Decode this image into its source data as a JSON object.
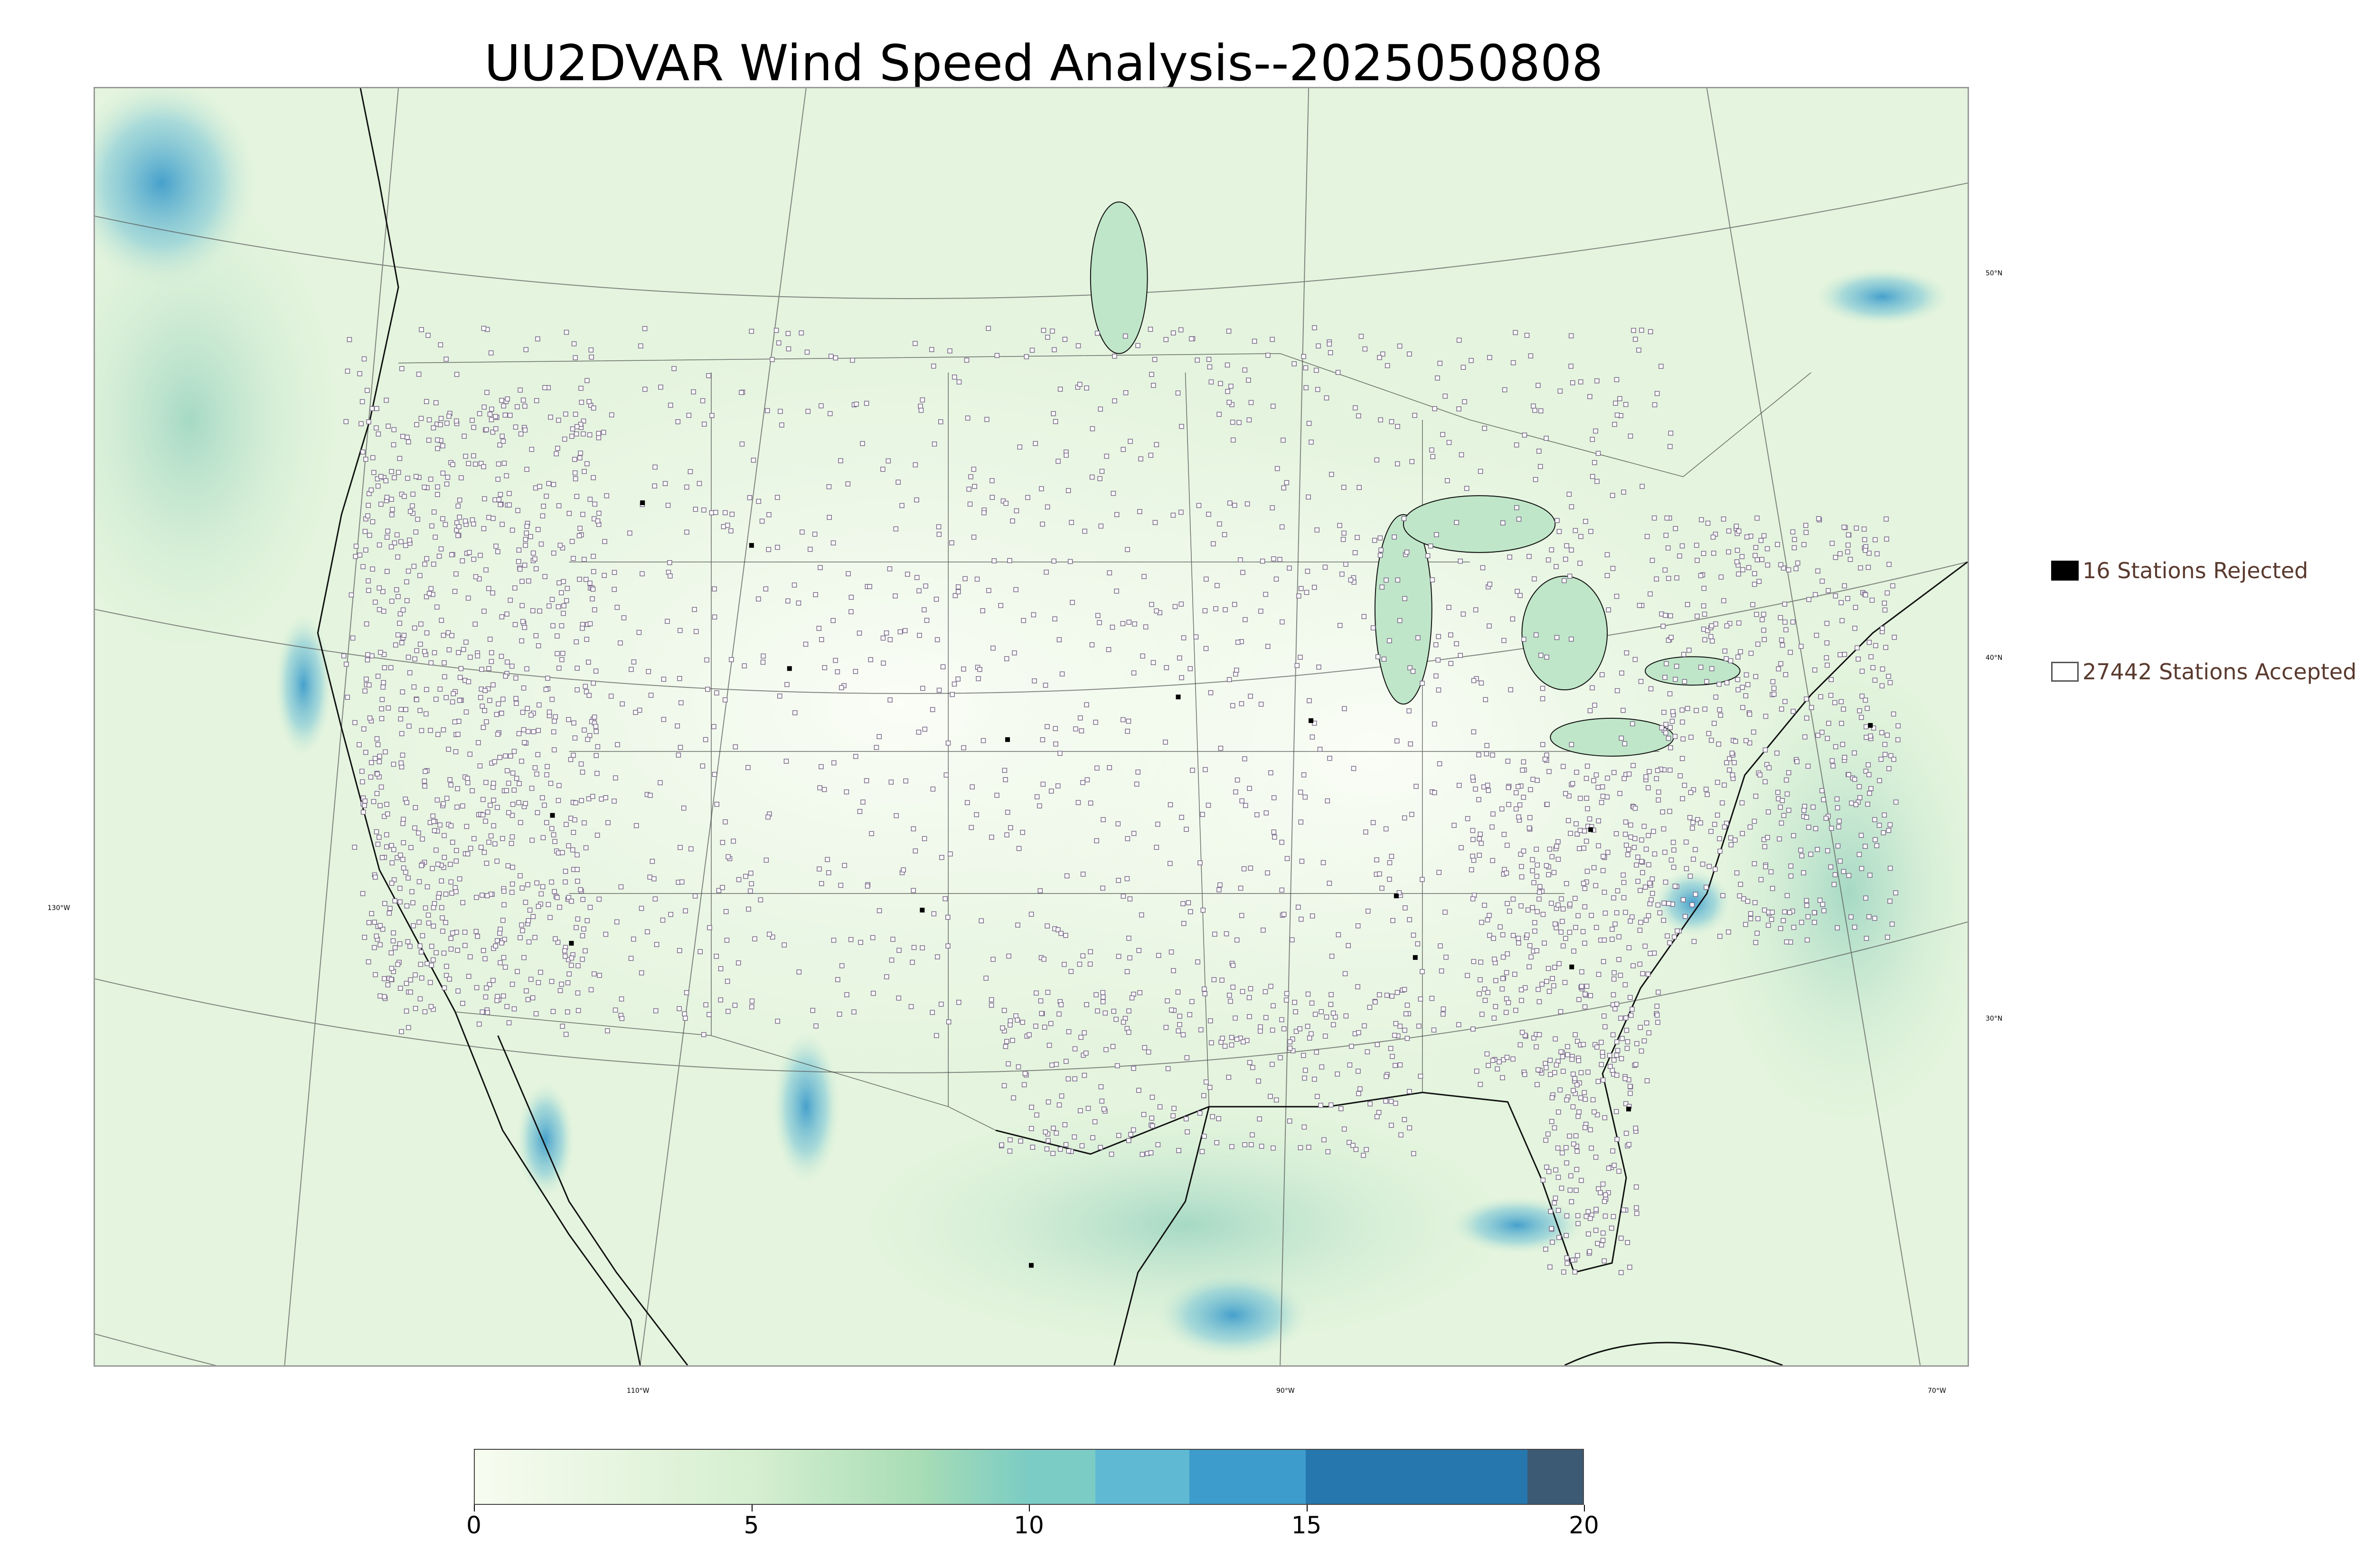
{
  "title": "UU2DVAR Wind Speed Analysis--2025050808",
  "map": {
    "background_color": "#eef8ea",
    "high_wind_color": "#5fb3d8",
    "station_accepted_color": "#7a6a8a",
    "station_rejected_color": "#000000",
    "longitude_labels": [
      "130°W",
      "110°W",
      "90°W",
      "70°W"
    ],
    "latitude_labels": [
      "50°N",
      "40°N",
      "30°N"
    ]
  },
  "legend": {
    "rejected_label": "16 Stations Rejected",
    "accepted_label": "27442 Stations Accepted",
    "rejected_swatch_color": "#000000",
    "accepted_swatch_color": "#ffffff"
  },
  "colorbar": {
    "min": 0,
    "max": 20,
    "ticks": [
      "0",
      "5",
      "10",
      "15",
      "20"
    ],
    "segments": [
      {
        "from": 0,
        "to": 5,
        "color_start": "#f7fcf0",
        "color_end": "#d6efd0"
      },
      {
        "from": 5,
        "to": 8,
        "color_start": "#d6efd0",
        "color_end": "#a8ddb5"
      },
      {
        "from": 8,
        "to": 10,
        "color_start": "#a8ddb5",
        "color_end": "#7bccc4"
      },
      {
        "from": 10,
        "to": 11.2,
        "color_start": "#7bccc4",
        "color_end": "#7bccc4"
      },
      {
        "from": 11.2,
        "to": 12.9,
        "color_start": "#5fb9d3",
        "color_end": "#5fb9d3"
      },
      {
        "from": 12.9,
        "to": 15,
        "color_start": "#3d9ccb",
        "color_end": "#3d9ccb"
      },
      {
        "from": 15,
        "to": 19,
        "color_start": "#2677ad",
        "color_end": "#2677ad"
      },
      {
        "from": 19,
        "to": 20,
        "color_start": "#3c5a74",
        "color_end": "#3c5a74"
      }
    ]
  }
}
